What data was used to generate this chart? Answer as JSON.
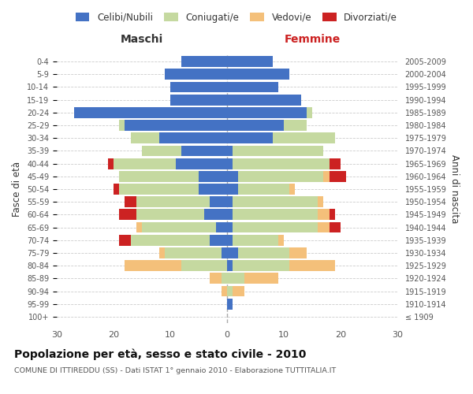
{
  "age_groups": [
    "100+",
    "95-99",
    "90-94",
    "85-89",
    "80-84",
    "75-79",
    "70-74",
    "65-69",
    "60-64",
    "55-59",
    "50-54",
    "45-49",
    "40-44",
    "35-39",
    "30-34",
    "25-29",
    "20-24",
    "15-19",
    "10-14",
    "5-9",
    "0-4"
  ],
  "birth_years": [
    "≤ 1909",
    "1910-1914",
    "1915-1919",
    "1920-1924",
    "1925-1929",
    "1930-1934",
    "1935-1939",
    "1940-1944",
    "1945-1949",
    "1950-1954",
    "1955-1959",
    "1960-1964",
    "1965-1969",
    "1970-1974",
    "1975-1979",
    "1980-1984",
    "1985-1989",
    "1990-1994",
    "1995-1999",
    "2000-2004",
    "2005-2009"
  ],
  "colors": {
    "celibi": "#4472c4",
    "coniugati": "#c5d9a0",
    "vedovi": "#f4c07a",
    "divorziati": "#cc2222"
  },
  "maschi": {
    "celibi": [
      0,
      0,
      0,
      0,
      0,
      1,
      3,
      2,
      4,
      3,
      5,
      5,
      9,
      8,
      12,
      18,
      27,
      10,
      10,
      11,
      8
    ],
    "coniugati": [
      0,
      0,
      0,
      1,
      8,
      10,
      14,
      13,
      12,
      13,
      14,
      14,
      11,
      7,
      5,
      1,
      0,
      0,
      0,
      0,
      0
    ],
    "vedovi": [
      0,
      0,
      1,
      2,
      10,
      1,
      0,
      1,
      0,
      0,
      0,
      0,
      0,
      0,
      0,
      0,
      0,
      0,
      0,
      0,
      0
    ],
    "divorziati": [
      0,
      0,
      0,
      0,
      0,
      0,
      2,
      0,
      3,
      2,
      1,
      0,
      1,
      0,
      0,
      0,
      0,
      0,
      0,
      0,
      0
    ]
  },
  "femmine": {
    "celibi": [
      0,
      1,
      0,
      0,
      1,
      2,
      1,
      1,
      1,
      1,
      2,
      2,
      1,
      1,
      8,
      10,
      14,
      13,
      9,
      11,
      8
    ],
    "coniugati": [
      0,
      0,
      1,
      3,
      10,
      9,
      8,
      15,
      15,
      15,
      9,
      15,
      17,
      16,
      11,
      4,
      1,
      0,
      0,
      0,
      0
    ],
    "vedovi": [
      0,
      0,
      2,
      6,
      8,
      3,
      1,
      2,
      2,
      1,
      1,
      1,
      0,
      0,
      0,
      0,
      0,
      0,
      0,
      0,
      0
    ],
    "divorziati": [
      0,
      0,
      0,
      0,
      0,
      0,
      0,
      2,
      1,
      0,
      0,
      3,
      2,
      0,
      0,
      0,
      0,
      0,
      0,
      0,
      0
    ]
  },
  "xlim": 30,
  "title": "Popolazione per età, sesso e stato civile - 2010",
  "subtitle": "COMUNE DI ITTIREDDU (SS) - Dati ISTAT 1° gennaio 2010 - Elaborazione TUTTITALIA.IT",
  "ylabel_left": "Fasce di età",
  "ylabel_right": "Anni di nascita",
  "xlabel_maschi": "Maschi",
  "xlabel_femmine": "Femmine",
  "legend_labels": [
    "Celibi/Nubili",
    "Coniugati/e",
    "Vedovi/e",
    "Divorziati/e"
  ],
  "bg_color": "#ffffff",
  "maschi_color": "#333333",
  "femmine_color": "#cc2222"
}
